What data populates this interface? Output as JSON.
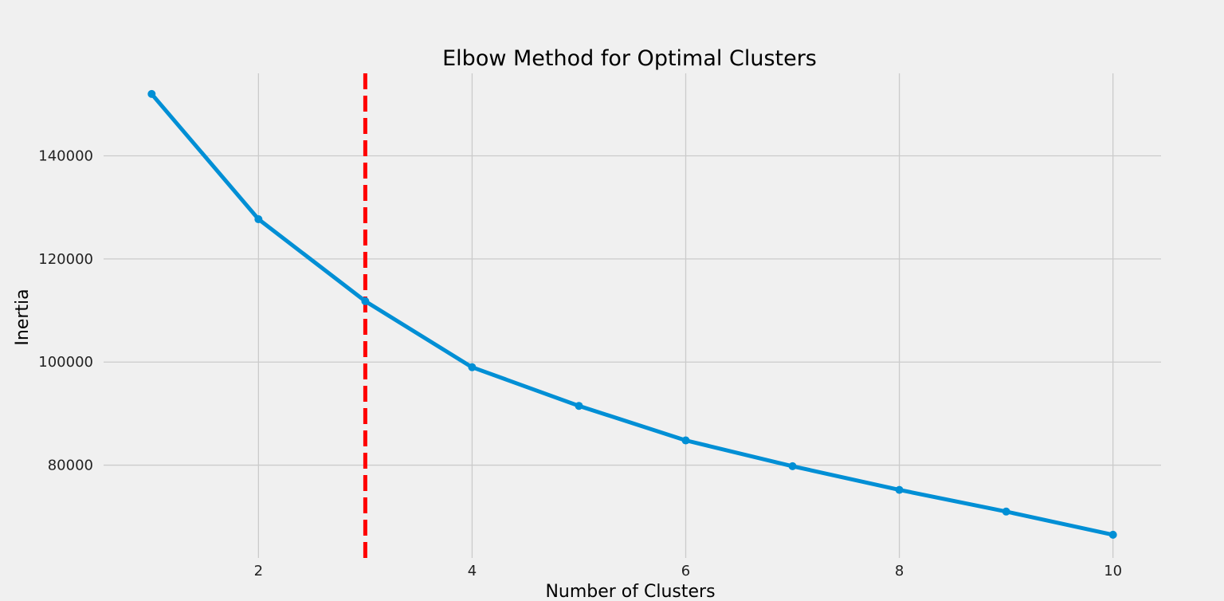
{
  "chart_data": {
    "type": "line",
    "title": "Elbow Method for Optimal Clusters",
    "xlabel": "Number of Clusters",
    "ylabel": "Inertia",
    "x": [
      1,
      2,
      3,
      4,
      5,
      6,
      7,
      8,
      9,
      10
    ],
    "series": [
      {
        "values": [
          152000,
          127700,
          111800,
          99000,
          91500,
          84800,
          79800,
          75200,
          71000,
          66500
        ],
        "color": "#008fd5"
      }
    ],
    "xticks": [
      2,
      4,
      6,
      8,
      10
    ],
    "yticks": [
      80000,
      100000,
      120000,
      140000
    ],
    "xtick_labels": [
      "2",
      "4",
      "6",
      "8",
      "10"
    ],
    "ytick_labels": [
      "80000",
      "100000",
      "120000",
      "140000"
    ],
    "xlim": [
      0.55,
      10.45
    ],
    "ylim": [
      62000,
      156000
    ],
    "grid": true,
    "annotations": [
      {
        "type": "vertical-line",
        "x": 3,
        "style": "dashed",
        "color": "#ff0000"
      }
    ]
  }
}
